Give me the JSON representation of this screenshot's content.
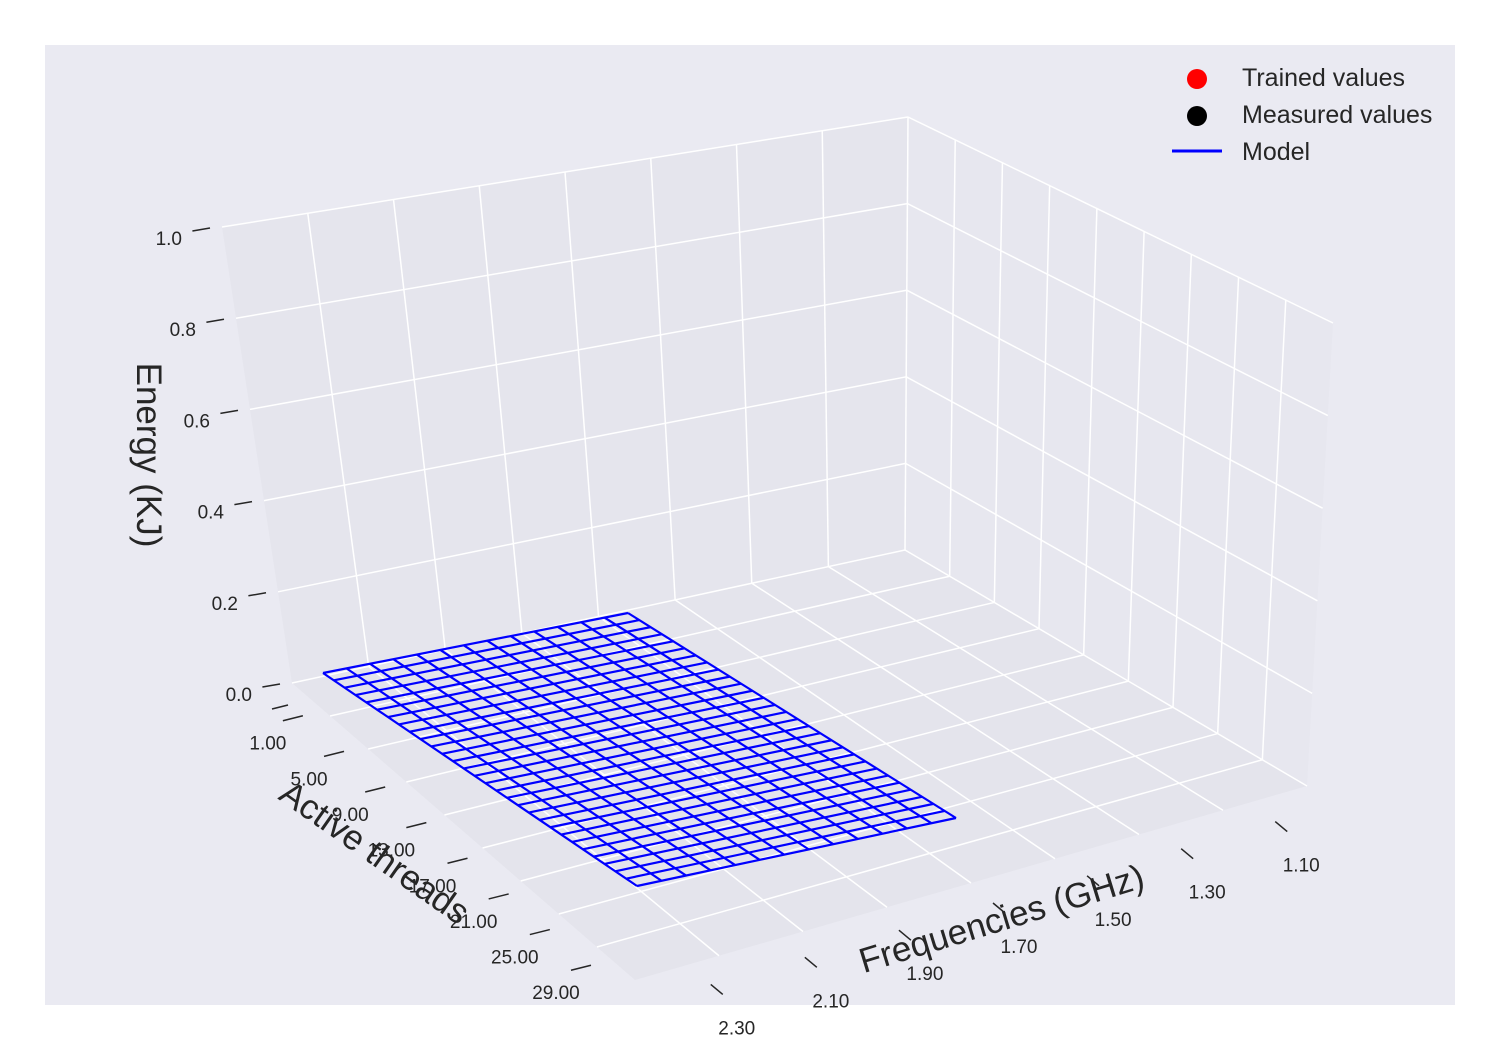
{
  "chart_data": {
    "type": "surface3d",
    "zlabel": "Energy (KJ)",
    "xlabel": "Frequencies (GHz)",
    "ylabel": "Active threads",
    "z_ticks": [
      "0.0",
      "0.2",
      "0.4",
      "0.6",
      "0.8",
      "1.0"
    ],
    "z_range": [
      0,
      1
    ],
    "frequency_ticks": [
      "1.10",
      "1.30",
      "1.50",
      "1.70",
      "1.90",
      "2.10",
      "2.30"
    ],
    "thread_ticks": [
      "1.00",
      "5.00",
      "9.00",
      "13.00",
      "17.00",
      "21.00",
      "25.00",
      "29.00"
    ],
    "legend": [
      {
        "label": "Trained values",
        "kind": "dot",
        "color": "#ff0000"
      },
      {
        "label": "Measured values",
        "kind": "dot",
        "color": "#000000"
      },
      {
        "label": "Model",
        "kind": "line",
        "color": "#0000ff"
      }
    ],
    "model_surface": {
      "z": 0,
      "frequency_range": [
        1.1,
        2.3
      ],
      "thread_range": [
        1,
        29
      ],
      "frequency_lines": 13,
      "thread_lines": 29,
      "color": "#0000ff"
    },
    "grid": true,
    "legend_position": "top-right",
    "background": "#eaeaf2"
  }
}
